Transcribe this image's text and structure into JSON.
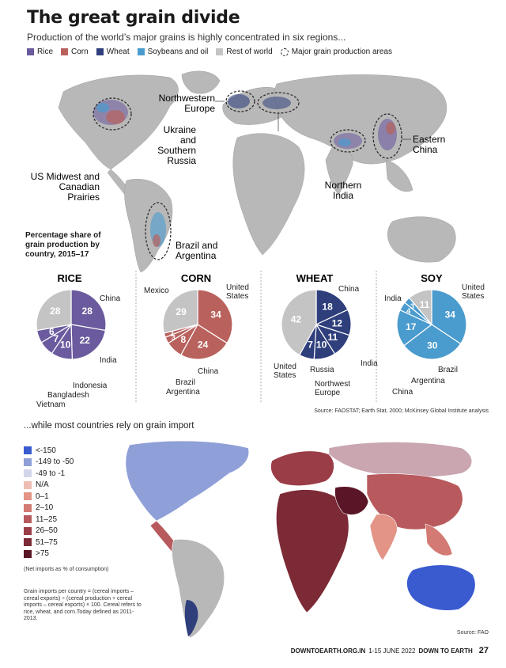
{
  "header": {
    "title": "The great grain divide",
    "subtitle": "Production of the world’s major grains is highly concentrated in six regions..."
  },
  "legend": {
    "items": [
      {
        "label": "Rice",
        "color": "#6b5a9e"
      },
      {
        "label": "Corn",
        "color": "#b9625d"
      },
      {
        "label": "Wheat",
        "color": "#2f3f7c"
      },
      {
        "label": "Soybeans and oil",
        "color": "#4a9bce"
      },
      {
        "label": "Rest of world",
        "color": "#c4c4c4"
      }
    ],
    "areas_label": "Major grain production areas"
  },
  "map1": {
    "regions": {
      "us": "US Midwest and\nCanadian\nPrairies",
      "nw_europe": "Northwestern\nEurope",
      "ukraine": "Ukraine\nand\nSouthern\nRussia",
      "china": "Eastern\nChina",
      "india": "Northern\nIndia",
      "brazil": "Brazil and\nArgentina"
    }
  },
  "share_title": "Percentage share of grain production by country, 2015–17",
  "chart_data": [
    {
      "type": "pie",
      "title": "RICE",
      "slices": [
        {
          "label": "China",
          "value": 28,
          "color": "#6b5a9e"
        },
        {
          "label": "India",
          "value": 22,
          "color": "#6b5a9e"
        },
        {
          "label": "Indonesia",
          "value": 10,
          "color": "#6b5a9e"
        },
        {
          "label": "Bangladesh",
          "value": 7,
          "color": "#6b5a9e"
        },
        {
          "label": "Vietnam",
          "value": 6,
          "color": "#6b5a9e"
        },
        {
          "label": "",
          "value": 28,
          "color": "#c4c4c4"
        }
      ]
    },
    {
      "type": "pie",
      "title": "CORN",
      "slices": [
        {
          "label": "United States",
          "value": 34,
          "color": "#b9625d"
        },
        {
          "label": "China",
          "value": 24,
          "color": "#b9625d"
        },
        {
          "label": "Brazil",
          "value": 8,
          "color": "#b9625d"
        },
        {
          "label": "Argentina",
          "value": 3,
          "color": "#b9625d"
        },
        {
          "label": "Mexico",
          "value": 2,
          "color": "#b9625d"
        },
        {
          "label": "",
          "value": 29,
          "color": "#c4c4c4"
        }
      ]
    },
    {
      "type": "pie",
      "title": "WHEAT",
      "slices": [
        {
          "label": "China",
          "value": 18,
          "color": "#2f3f7c"
        },
        {
          "label": "India",
          "value": 12,
          "color": "#2f3f7c"
        },
        {
          "label": "Northwest Europe",
          "value": 11,
          "color": "#2f3f7c"
        },
        {
          "label": "Russia",
          "value": 10,
          "color": "#2f3f7c"
        },
        {
          "label": "United States",
          "value": 7,
          "color": "#2f3f7c"
        },
        {
          "label": "",
          "value": 42,
          "color": "#c4c4c4"
        }
      ]
    },
    {
      "type": "pie",
      "title": "SOY",
      "slices": [
        {
          "label": "United States",
          "value": 34,
          "color": "#4a9bce"
        },
        {
          "label": "Brazil",
          "value": 30,
          "color": "#4a9bce"
        },
        {
          "label": "Argentina",
          "value": 17,
          "color": "#4a9bce"
        },
        {
          "label": "China",
          "value": 4,
          "color": "#4a9bce"
        },
        {
          "label": "India",
          "value": 3,
          "color": "#4a9bce"
        },
        {
          "label": "",
          "value": 11,
          "color": "#c4c4c4"
        }
      ]
    }
  ],
  "source1": "Source: FAOSTAT; Earth Stat, 2000; McKinsey Global Institute analysis",
  "import_title": "...while most countries rely on grain import",
  "import_legend": [
    {
      "label": "<-150",
      "color": "#3a5bd0"
    },
    {
      "label": "-149 to -50",
      "color": "#8f9fd8"
    },
    {
      "label": "-49 to -1",
      "color": "#d3d6ea"
    },
    {
      "label": "N/A",
      "color": "#eebcb2"
    },
    {
      "label": "0–1",
      "color": "#e39486"
    },
    {
      "label": "2–10",
      "color": "#d27a73"
    },
    {
      "label": "11–25",
      "color": "#b85a5d"
    },
    {
      "label": "26–50",
      "color": "#9a3d46"
    },
    {
      "label": "51–75",
      "color": "#7c2a36"
    },
    {
      "label": ">75",
      "color": "#5a1626"
    }
  ],
  "import_note": "(Net imports as % of consumption)",
  "import_formula": "Grain imports per country = (cereal imports – cereal exports) ÷ (cereal production + cereal imports – cereal exports) × 100. Cereal refers to rice, wheat, and corn.Today defined as 2011-2013.",
  "source2": "Source: FAO",
  "footer": {
    "site": "DOWNTOEARTH.ORG.IN",
    "date": "1-15 JUNE 2022",
    "mag": "DOWN TO EARTH",
    "page": "27"
  }
}
